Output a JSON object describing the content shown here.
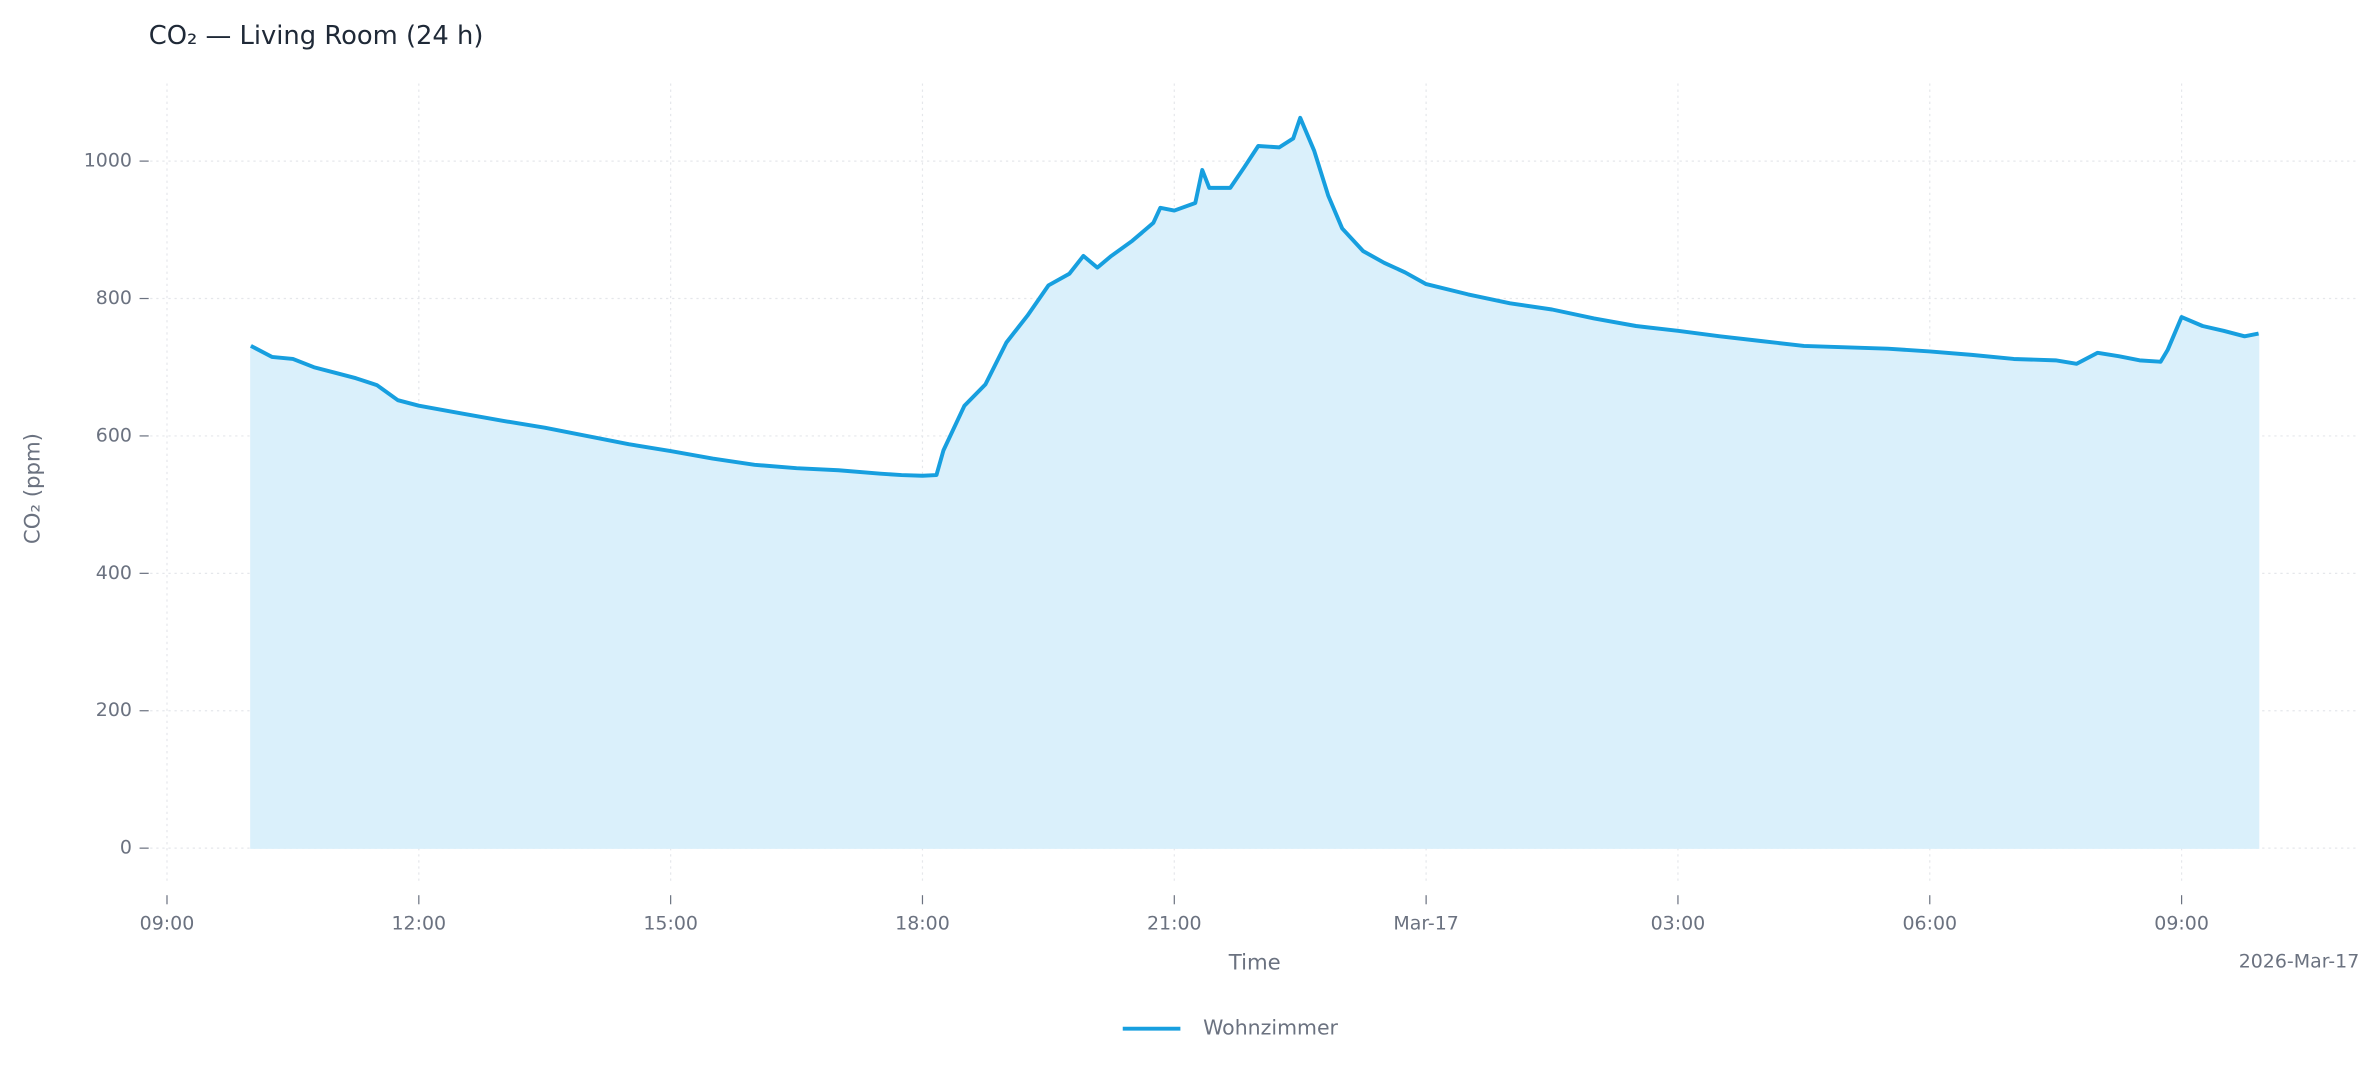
{
  "chart_data": {
    "type": "line",
    "title": "CO₂ — Living Room (24 h)",
    "x_label": "Time",
    "y_label": "CO₂ (ppm)",
    "x_offset_label": "2026-Mar-17",
    "x": [
      "2026-03-16T10:00",
      "2026-03-16T10:15",
      "2026-03-16T10:30",
      "2026-03-16T10:45",
      "2026-03-16T11:00",
      "2026-03-16T11:15",
      "2026-03-16T11:30",
      "2026-03-16T11:45",
      "2026-03-16T12:00",
      "2026-03-16T12:30",
      "2026-03-16T13:00",
      "2026-03-16T13:30",
      "2026-03-16T14:00",
      "2026-03-16T14:30",
      "2026-03-16T15:00",
      "2026-03-16T15:30",
      "2026-03-16T16:00",
      "2026-03-16T16:30",
      "2026-03-16T17:00",
      "2026-03-16T17:30",
      "2026-03-16T17:45",
      "2026-03-16T18:00",
      "2026-03-16T18:10",
      "2026-03-16T18:15",
      "2026-03-16T18:30",
      "2026-03-16T18:45",
      "2026-03-16T19:00",
      "2026-03-16T19:15",
      "2026-03-16T19:30",
      "2026-03-16T19:45",
      "2026-03-16T19:55",
      "2026-03-16T20:05",
      "2026-03-16T20:15",
      "2026-03-16T20:30",
      "2026-03-16T20:45",
      "2026-03-16T20:50",
      "2026-03-16T21:00",
      "2026-03-16T21:15",
      "2026-03-16T21:20",
      "2026-03-16T21:25",
      "2026-03-16T21:40",
      "2026-03-16T21:50",
      "2026-03-16T22:00",
      "2026-03-16T22:15",
      "2026-03-16T22:25",
      "2026-03-16T22:30",
      "2026-03-16T22:40",
      "2026-03-16T22:50",
      "2026-03-16T23:00",
      "2026-03-16T23:15",
      "2026-03-16T23:30",
      "2026-03-16T23:45",
      "2026-03-17T00:00",
      "2026-03-17T00:30",
      "2026-03-17T01:00",
      "2026-03-17T01:30",
      "2026-03-17T02:00",
      "2026-03-17T02:30",
      "2026-03-17T03:00",
      "2026-03-17T03:30",
      "2026-03-17T04:00",
      "2026-03-17T04:30",
      "2026-03-17T05:00",
      "2026-03-17T05:30",
      "2026-03-17T06:00",
      "2026-03-17T06:30",
      "2026-03-17T07:00",
      "2026-03-17T07:30",
      "2026-03-17T07:45",
      "2026-03-17T08:00",
      "2026-03-17T08:15",
      "2026-03-17T08:30",
      "2026-03-17T08:45",
      "2026-03-17T08:50",
      "2026-03-17T09:00",
      "2026-03-17T09:15",
      "2026-03-17T09:30",
      "2026-03-17T09:45",
      "2026-03-17T09:55"
    ],
    "series": [
      {
        "name": "Wohnzimmer",
        "color": "#179fdf",
        "fill": "#daf0fb",
        "values": [
          731,
          715,
          712,
          700,
          692,
          684,
          674,
          652,
          644,
          633,
          622,
          612,
          600,
          588,
          578,
          567,
          558,
          553,
          550,
          545,
          543,
          542,
          543,
          579,
          644,
          675,
          736,
          775,
          819,
          836,
          862,
          845,
          862,
          884,
          910,
          932,
          928,
          939,
          987,
          961,
          961,
          991,
          1022,
          1020,
          1033,
          1063,
          1015,
          950,
          902,
          869,
          852,
          838,
          821,
          806,
          793,
          784,
          771,
          760,
          753,
          745,
          738,
          731,
          729,
          727,
          723,
          718,
          712,
          710,
          705,
          721,
          716,
          710,
          708,
          725,
          773,
          760,
          753,
          745,
          749
        ]
      }
    ],
    "xlim": [
      "2026-03-16T08:48",
      "2026-03-17T11:07"
    ],
    "xticks": [
      {
        "value": "2026-03-16T09:00",
        "label": "09:00"
      },
      {
        "value": "2026-03-16T12:00",
        "label": "12:00"
      },
      {
        "value": "2026-03-16T15:00",
        "label": "15:00"
      },
      {
        "value": "2026-03-16T18:00",
        "label": "18:00"
      },
      {
        "value": "2026-03-16T21:00",
        "label": "21:00"
      },
      {
        "value": "2026-03-17T00:00",
        "label": "Mar-17"
      },
      {
        "value": "2026-03-17T03:00",
        "label": "03:00"
      },
      {
        "value": "2026-03-17T06:00",
        "label": "06:00"
      },
      {
        "value": "2026-03-17T09:00",
        "label": "09:00"
      }
    ],
    "ylim": [
      -53,
      1113
    ],
    "yticks": [
      0,
      200,
      400,
      600,
      800,
      1000
    ],
    "grid": true,
    "legend": "below"
  }
}
